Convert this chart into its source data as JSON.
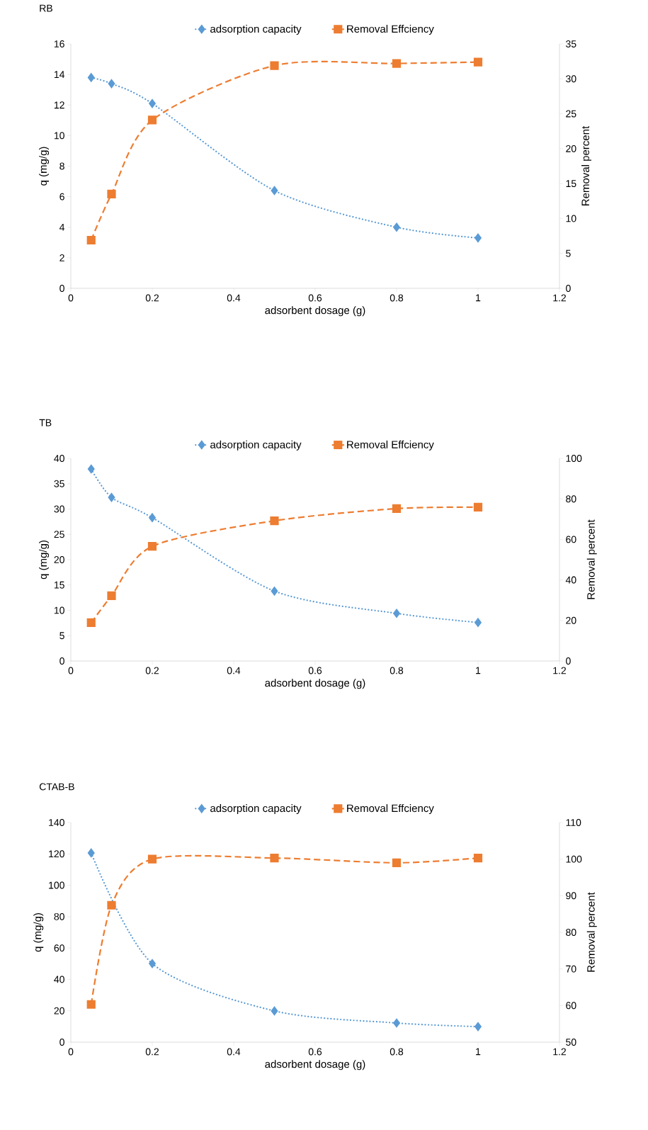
{
  "chart_data": [
    {
      "type": "line",
      "title": "RB",
      "xlabel": "adsorbent dosage (g)",
      "ylabel": "q (mg/g)",
      "y2label": "Removal percent",
      "legend": "top",
      "x": [
        0.05,
        0.1,
        0.2,
        0.5,
        0.8,
        1
      ],
      "xlim": [
        0,
        1.2
      ],
      "xticks": [
        0,
        0.2,
        0.4,
        0.6,
        0.8,
        1,
        1.2
      ],
      "ylim": [
        0,
        16
      ],
      "yticks": [
        0,
        2,
        4,
        6,
        8,
        10,
        12,
        14,
        16
      ],
      "y2lim": [
        0,
        35
      ],
      "y2ticks": [
        0,
        5,
        10,
        15,
        20,
        25,
        30,
        35
      ],
      "series": [
        {
          "name": "adsorption capacity",
          "color": "#5b9bd5",
          "marker": "diamond",
          "line_style": "dotted",
          "values": [
            13.8,
            13.4,
            12.1,
            6.4,
            4.0,
            3.3
          ]
        },
        {
          "name": "Removal Effciency",
          "color": "#ed7d31",
          "marker": "square",
          "line_style": "dashed",
          "axis": "y2",
          "values": [
            6.9,
            13.5,
            24.1,
            31.9,
            32.2,
            32.4
          ]
        }
      ]
    },
    {
      "type": "line",
      "title": "TB",
      "xlabel": "adsorbent dosage (g)",
      "ylabel": "q (mg/g)",
      "y2label": "Removal percent",
      "legend": "top",
      "x": [
        0.05,
        0.1,
        0.2,
        0.5,
        0.8,
        1
      ],
      "xlim": [
        0,
        1.2
      ],
      "xticks": [
        0,
        0.2,
        0.4,
        0.6,
        0.8,
        1,
        1.2
      ],
      "ylim": [
        0,
        40
      ],
      "yticks": [
        0,
        5,
        10,
        15,
        20,
        25,
        30,
        35,
        40
      ],
      "y2lim": [
        0,
        100
      ],
      "y2ticks": [
        0,
        20,
        40,
        60,
        80,
        100
      ],
      "series": [
        {
          "name": "adsorption capacity",
          "color": "#5b9bd5",
          "marker": "diamond",
          "line_style": "dotted",
          "values": [
            37.9,
            32.3,
            28.3,
            13.8,
            9.4,
            7.6
          ]
        },
        {
          "name": "Removal Effciency",
          "color": "#ed7d31",
          "marker": "square",
          "line_style": "dashed",
          "axis": "y2",
          "values": [
            18.9,
            32.2,
            56.6,
            69.2,
            75.2,
            75.9
          ]
        }
      ]
    },
    {
      "type": "line",
      "title": "CTAB-B",
      "xlabel": "adsorbent dosage (g)",
      "ylabel": "q (mg/g)",
      "y2label": "Removal percent",
      "legend": "top",
      "x": [
        0.05,
        0.1,
        0.2,
        0.5,
        0.8,
        1
      ],
      "xlim": [
        0,
        1.2
      ],
      "xticks": [
        0,
        0.2,
        0.4,
        0.6,
        0.8,
        1,
        1.2
      ],
      "ylim": [
        0,
        140
      ],
      "yticks": [
        0,
        20,
        40,
        60,
        80,
        100,
        120,
        140
      ],
      "y2lim": [
        50,
        110
      ],
      "y2ticks": [
        50,
        60,
        70,
        80,
        90,
        100,
        110
      ],
      "series": [
        {
          "name": "adsorption capacity",
          "color": "#5b9bd5",
          "marker": "diamond",
          "line_style": "dotted",
          "values": [
            120.6,
            null,
            50.1,
            19.9,
            12.2,
            9.9
          ]
        },
        {
          "name": "Removal Effciency",
          "color": "#ed7d31",
          "marker": "square",
          "line_style": "dashed",
          "axis": "y2",
          "values": [
            60.3,
            87.4,
            100,
            100.3,
            99.0,
            100.3
          ]
        }
      ]
    }
  ]
}
